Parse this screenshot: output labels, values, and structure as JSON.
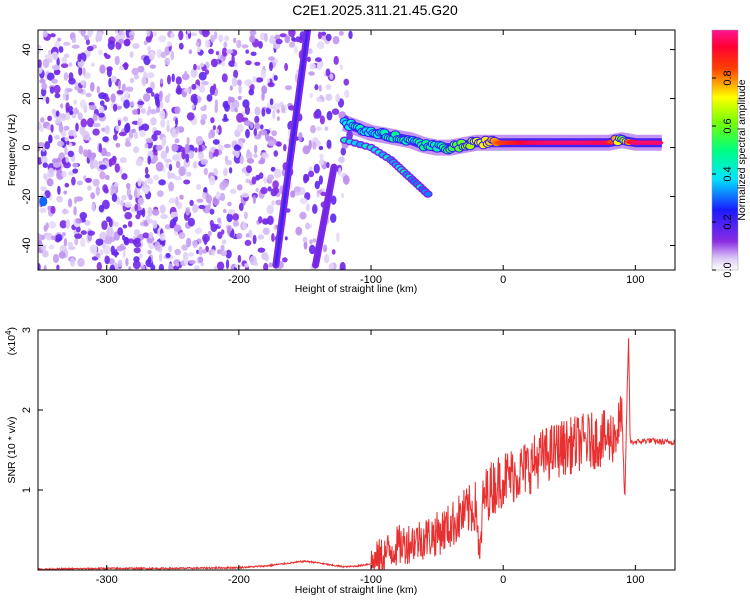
{
  "title": "C2E1.2025.311.21.45.G20",
  "colors": {
    "snr_line": "#e83030",
    "axis": "#000000"
  },
  "chart_data": [
    {
      "type": "heatmap",
      "name": "spectrogram",
      "xlabel": "Height of straight line (km)",
      "ylabel": "Frequency (Hz)",
      "xlim": [
        -352,
        130
      ],
      "ylim": [
        -50,
        48
      ],
      "x_ticks": [
        -300,
        -200,
        -100,
        0,
        100
      ],
      "y_ticks": [
        -40,
        -20,
        0,
        20,
        40
      ],
      "x_tick_labels": [
        "-300",
        "-200",
        "-100",
        "0",
        "100"
      ],
      "y_tick_labels": [
        "-40",
        "-20",
        "0",
        "20",
        "40"
      ],
      "colorbar": {
        "label": "Normalized spectral amplitude",
        "range": [
          0.0,
          1.0
        ],
        "ticks": [
          0.0,
          0.2,
          0.4,
          0.6,
          0.8
        ],
        "tick_labels": [
          "0.0",
          "0.2",
          "0.4",
          "0.6",
          "0.8"
        ],
        "colormap": "rainbow (white-violet-blue-cyan-green-yellow-red-magenta)"
      },
      "features": {
        "noise_region_x": [
          -352,
          -115
        ],
        "diagonal_streak_1": {
          "x": [
            -172,
            -148
          ],
          "y": [
            -48,
            48
          ],
          "amplitude": 0.2
        },
        "diagonal_streak_2": {
          "x": [
            -142,
            -128
          ],
          "y": [
            -48,
            -8
          ],
          "amplitude": 0.15
        },
        "signal_band": [
          {
            "x": -120,
            "y": 10,
            "amp": 0.4
          },
          {
            "x": -110,
            "y": 8,
            "amp": 0.45
          },
          {
            "x": -100,
            "y": 6,
            "amp": 0.4
          },
          {
            "x": -90,
            "y": 5,
            "amp": 0.45
          },
          {
            "x": -80,
            "y": 4,
            "amp": 0.5
          },
          {
            "x": -70,
            "y": 3,
            "amp": 0.45
          },
          {
            "x": -60,
            "y": 1,
            "amp": 0.5
          },
          {
            "x": -50,
            "y": 0,
            "amp": 0.45
          },
          {
            "x": -40,
            "y": 0,
            "amp": 0.55
          },
          {
            "x": -30,
            "y": 1,
            "amp": 0.6
          },
          {
            "x": -20,
            "y": 2,
            "amp": 0.7
          },
          {
            "x": -10,
            "y": 2,
            "amp": 0.75
          },
          {
            "x": 0,
            "y": 2,
            "amp": 0.85
          },
          {
            "x": 20,
            "y": 2,
            "amp": 0.95
          },
          {
            "x": 40,
            "y": 2,
            "amp": 0.97
          },
          {
            "x": 60,
            "y": 2,
            "amp": 0.97
          },
          {
            "x": 80,
            "y": 2,
            "amp": 0.95
          },
          {
            "x": 90,
            "y": 3,
            "amp": 0.6
          },
          {
            "x": 100,
            "y": 2,
            "amp": 0.97
          },
          {
            "x": 120,
            "y": 2,
            "amp": 0.97
          }
        ],
        "lower_branch": [
          {
            "x": -120,
            "y": 3
          },
          {
            "x": -100,
            "y": 0
          },
          {
            "x": -85,
            "y": -5
          },
          {
            "x": -75,
            "y": -10
          },
          {
            "x": -65,
            "y": -15
          },
          {
            "x": -55,
            "y": -20
          }
        ]
      }
    },
    {
      "type": "line",
      "name": "snr",
      "xlabel": "Height of straight line (km)",
      "ylabel": "SNR (10 * v/v)",
      "multiplier_label": "(x10",
      "multiplier_exp": "4",
      "multiplier_close": ")",
      "xlim": [
        -352,
        130
      ],
      "ylim": [
        0,
        3.0
      ],
      "x_ticks": [
        -300,
        -200,
        -100,
        0,
        100
      ],
      "y_ticks": [
        1,
        2,
        3
      ],
      "x_tick_labels": [
        "-300",
        "-200",
        "-100",
        "0",
        "100"
      ],
      "y_tick_labels": [
        "1",
        "2",
        "3"
      ],
      "series": [
        {
          "x": [
            -352,
            -300,
            -250,
            -200,
            -180,
            -160,
            -150,
            -140,
            -130,
            -120,
            -110,
            -100,
            -90,
            -80,
            -70,
            -60,
            -50,
            -40,
            -30,
            -20,
            -18,
            -15,
            -10,
            0,
            10,
            20,
            30,
            40,
            50,
            60,
            70,
            80,
            85,
            90,
            92,
            94,
            95,
            96,
            100,
            110,
            120,
            130
          ],
          "y": [
            0.01,
            0.02,
            0.02,
            0.03,
            0.05,
            0.09,
            0.11,
            0.09,
            0.06,
            0.04,
            0.05,
            0.08,
            0.2,
            0.3,
            0.35,
            0.4,
            0.45,
            0.55,
            0.7,
            0.8,
            0.05,
            0.9,
            1.0,
            1.15,
            1.2,
            1.3,
            1.42,
            1.5,
            1.55,
            1.6,
            1.62,
            1.65,
            1.7,
            1.9,
            0.8,
            2.4,
            2.9,
            1.6,
            1.6,
            1.62,
            1.6,
            1.6
          ]
        }
      ]
    }
  ]
}
